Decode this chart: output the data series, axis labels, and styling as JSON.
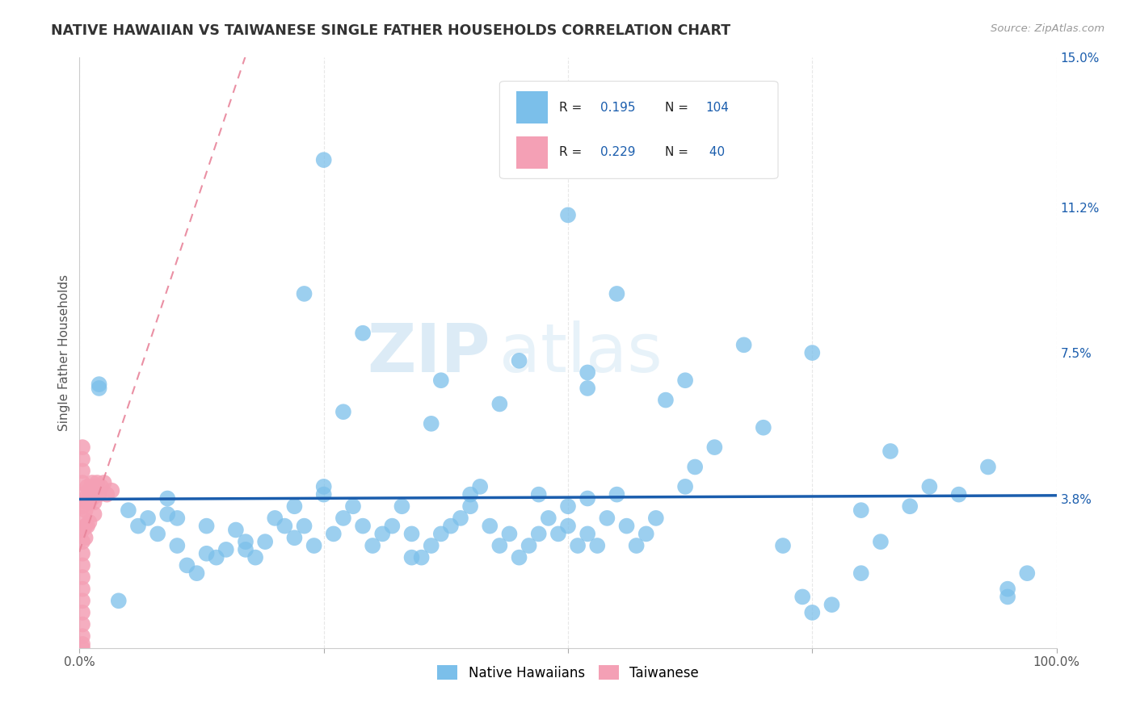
{
  "title": "NATIVE HAWAIIAN VS TAIWANESE SINGLE FATHER HOUSEHOLDS CORRELATION CHART",
  "source": "Source: ZipAtlas.com",
  "ylabel": "Single Father Households",
  "xlim": [
    0,
    1.0
  ],
  "ylim": [
    0,
    0.15
  ],
  "ytick_positions": [
    0.038,
    0.075,
    0.112,
    0.15
  ],
  "ytick_labels": [
    "3.8%",
    "7.5%",
    "11.2%",
    "15.0%"
  ],
  "legend1_label": "Native Hawaiians",
  "legend2_label": "Taiwanese",
  "R1": "0.195",
  "N1": "104",
  "R2": "0.229",
  "N2": "40",
  "color_blue": "#7BBFEA",
  "color_pink": "#F4A0B5",
  "color_line_blue": "#1A5DAD",
  "color_line_pink": "#E8849A",
  "watermark_zip": "ZIP",
  "watermark_atlas": "atlas",
  "bg_color": "#FFFFFF",
  "grid_color": "#E8E8E8",
  "native_hawaiian_x": [
    0.02,
    0.02,
    0.04,
    0.05,
    0.06,
    0.07,
    0.08,
    0.09,
    0.09,
    0.1,
    0.1,
    0.11,
    0.12,
    0.13,
    0.13,
    0.14,
    0.15,
    0.16,
    0.17,
    0.17,
    0.18,
    0.19,
    0.2,
    0.21,
    0.22,
    0.22,
    0.23,
    0.24,
    0.25,
    0.25,
    0.26,
    0.27,
    0.27,
    0.28,
    0.29,
    0.3,
    0.31,
    0.32,
    0.33,
    0.34,
    0.34,
    0.35,
    0.36,
    0.36,
    0.37,
    0.38,
    0.39,
    0.4,
    0.4,
    0.41,
    0.42,
    0.43,
    0.44,
    0.45,
    0.46,
    0.47,
    0.47,
    0.48,
    0.49,
    0.5,
    0.5,
    0.51,
    0.52,
    0.52,
    0.53,
    0.54,
    0.55,
    0.56,
    0.57,
    0.58,
    0.59,
    0.6,
    0.62,
    0.63,
    0.65,
    0.7,
    0.72,
    0.74,
    0.75,
    0.77,
    0.8,
    0.82,
    0.85,
    0.87,
    0.9,
    0.93,
    0.95,
    0.97,
    0.23,
    0.29,
    0.37,
    0.43,
    0.5,
    0.52,
    0.62,
    0.68,
    0.75,
    0.8,
    0.83,
    0.95,
    0.25,
    0.45,
    0.52,
    0.55
  ],
  "native_hawaiian_y": [
    0.066,
    0.067,
    0.012,
    0.035,
    0.031,
    0.033,
    0.029,
    0.038,
    0.034,
    0.026,
    0.033,
    0.021,
    0.019,
    0.024,
    0.031,
    0.023,
    0.025,
    0.03,
    0.027,
    0.025,
    0.023,
    0.027,
    0.033,
    0.031,
    0.028,
    0.036,
    0.031,
    0.026,
    0.041,
    0.039,
    0.029,
    0.033,
    0.06,
    0.036,
    0.031,
    0.026,
    0.029,
    0.031,
    0.036,
    0.029,
    0.023,
    0.023,
    0.026,
    0.057,
    0.029,
    0.031,
    0.033,
    0.036,
    0.039,
    0.041,
    0.031,
    0.026,
    0.029,
    0.023,
    0.026,
    0.029,
    0.039,
    0.033,
    0.029,
    0.036,
    0.031,
    0.026,
    0.029,
    0.038,
    0.026,
    0.033,
    0.039,
    0.031,
    0.026,
    0.029,
    0.033,
    0.063,
    0.041,
    0.046,
    0.051,
    0.056,
    0.026,
    0.013,
    0.009,
    0.011,
    0.019,
    0.027,
    0.036,
    0.041,
    0.039,
    0.046,
    0.013,
    0.019,
    0.09,
    0.08,
    0.068,
    0.062,
    0.11,
    0.066,
    0.068,
    0.077,
    0.075,
    0.035,
    0.05,
    0.015,
    0.124,
    0.073,
    0.07,
    0.09
  ],
  "taiwanese_x": [
    0.003,
    0.003,
    0.003,
    0.003,
    0.003,
    0.003,
    0.003,
    0.003,
    0.003,
    0.003,
    0.003,
    0.003,
    0.003,
    0.003,
    0.003,
    0.003,
    0.003,
    0.003,
    0.003,
    0.006,
    0.006,
    0.006,
    0.006,
    0.008,
    0.008,
    0.008,
    0.01,
    0.01,
    0.01,
    0.013,
    0.013,
    0.015,
    0.015,
    0.015,
    0.018,
    0.02,
    0.022,
    0.025,
    0.028,
    0.033
  ],
  "taiwanese_y": [
    0.039,
    0.036,
    0.033,
    0.03,
    0.027,
    0.024,
    0.021,
    0.018,
    0.015,
    0.012,
    0.009,
    0.006,
    0.003,
    0.001,
    0.042,
    0.045,
    0.048,
    0.051,
    0.0,
    0.038,
    0.035,
    0.031,
    0.028,
    0.041,
    0.037,
    0.031,
    0.04,
    0.037,
    0.032,
    0.042,
    0.038,
    0.041,
    0.037,
    0.034,
    0.042,
    0.039,
    0.041,
    0.042,
    0.039,
    0.04
  ]
}
